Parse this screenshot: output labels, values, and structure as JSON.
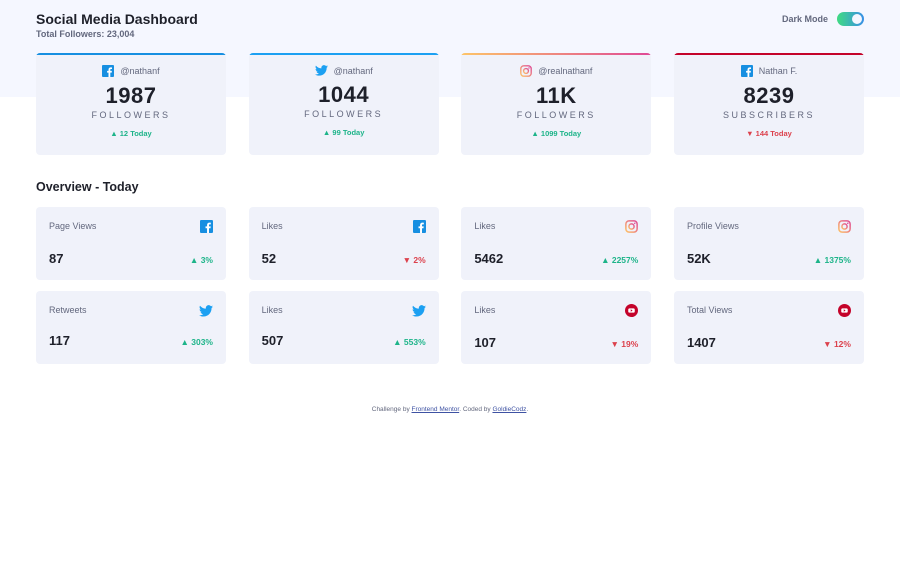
{
  "header": {
    "title": "Social Media Dashboard",
    "total_followers": "Total Followers: 23,004",
    "dark_mode_label": "Dark Mode"
  },
  "colors": {
    "facebook": "#178fe1",
    "twitter": "#1ca0f2",
    "instagram_from": "#fdc468",
    "instagram_to": "#df4996",
    "youtube": "#c4032a",
    "up": "#1db489",
    "down": "#dc414c"
  },
  "follow_cards": [
    {
      "platform": "facebook",
      "icon": "facebook-icon",
      "handle": "@nathanf",
      "count": "1987",
      "label": "FOLLOWERS",
      "today": "12 Today",
      "trend": "up"
    },
    {
      "platform": "twitter",
      "icon": "twitter-icon",
      "handle": "@nathanf",
      "count": "1044",
      "label": "FOLLOWERS",
      "today": "99 Today",
      "trend": "up"
    },
    {
      "platform": "instagram",
      "icon": "instagram-icon",
      "handle": "@realnathanf",
      "count": "11K",
      "label": "FOLLOWERS",
      "today": "1099 Today",
      "trend": "up"
    },
    {
      "platform": "youtube",
      "icon": "facebook-icon",
      "handle": "Nathan F.",
      "count": "8239",
      "label": "SUBSCRIBERS",
      "today": "144 Today",
      "trend": "down"
    }
  ],
  "overview": {
    "title": "Overview - Today",
    "cards": [
      {
        "label": "Page Views",
        "icon": "facebook-icon",
        "value": "87",
        "change": "3%",
        "trend": "up"
      },
      {
        "label": "Likes",
        "icon": "facebook-icon",
        "value": "52",
        "change": "2%",
        "trend": "down"
      },
      {
        "label": "Likes",
        "icon": "instagram-icon",
        "value": "5462",
        "change": "2257%",
        "trend": "up"
      },
      {
        "label": "Profile Views",
        "icon": "instagram-icon",
        "value": "52K",
        "change": "1375%",
        "trend": "up"
      },
      {
        "label": "Retweets",
        "icon": "twitter-icon",
        "value": "117",
        "change": "303%",
        "trend": "up"
      },
      {
        "label": "Likes",
        "icon": "twitter-icon",
        "value": "507",
        "change": "553%",
        "trend": "up"
      },
      {
        "label": "Likes",
        "icon": "youtube-icon",
        "value": "107",
        "change": "19%",
        "trend": "down"
      },
      {
        "label": "Total Views",
        "icon": "youtube-icon",
        "value": "1407",
        "change": "12%",
        "trend": "down"
      }
    ]
  },
  "footer": {
    "prefix": "Challenge by ",
    "link1": "Frontend Mentor",
    "middle": ". Coded by ",
    "link2": "GoldieCodz",
    "suffix": "."
  }
}
